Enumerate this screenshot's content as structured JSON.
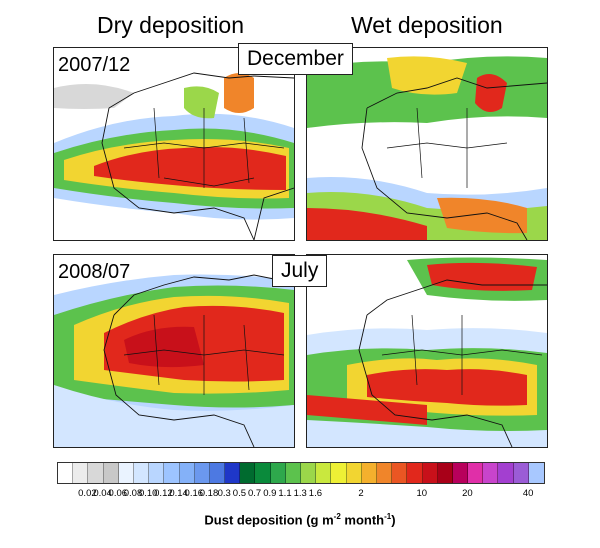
{
  "columns": {
    "dry": "Dry deposition",
    "wet": "Wet deposition"
  },
  "panels": [
    {
      "id": "dry-dec",
      "date": "2007/12"
    },
    {
      "id": "wet-dec",
      "date": ""
    },
    {
      "id": "dry-jul",
      "date": "2008/07"
    },
    {
      "id": "wet-jul",
      "date": ""
    }
  ],
  "months": {
    "december": "December",
    "july": "July"
  },
  "colorbar": {
    "title_main": "Dust deposition (g m",
    "exp1": "-2",
    "title_mid": " month",
    "exp2": "-1",
    "title_end": ")",
    "ticks": [
      "0.02",
      "0.04",
      "0.06",
      "0.08",
      "0.10",
      "0.12",
      "0.14",
      "0.16",
      "0.18",
      "0.3",
      "0.5",
      "0.7",
      "0.9",
      "1.1",
      "1.3",
      "1.6",
      "2",
      "10",
      "20",
      "40"
    ],
    "colors": [
      "#ffffff",
      "#ececec",
      "#d8d8d8",
      "#c8c8c8",
      "#eaf3ff",
      "#d3e6ff",
      "#b9d6ff",
      "#9dc4ff",
      "#84b1f8",
      "#6b98ee",
      "#4d79e2",
      "#1f37c8",
      "#006b2f",
      "#0a8a3b",
      "#2ea84c",
      "#5cc24d",
      "#9bd74a",
      "#c9e83e",
      "#eef035",
      "#f2d531",
      "#f4b02d",
      "#f0852a",
      "#ea5623",
      "#e1281c",
      "#c8101a",
      "#a80018",
      "#b8005c",
      "#e02fa8",
      "#c844cc",
      "#a33fd0",
      "#9b5cd6",
      "#a8c8ff"
    ],
    "colors_note": ""
  }
}
